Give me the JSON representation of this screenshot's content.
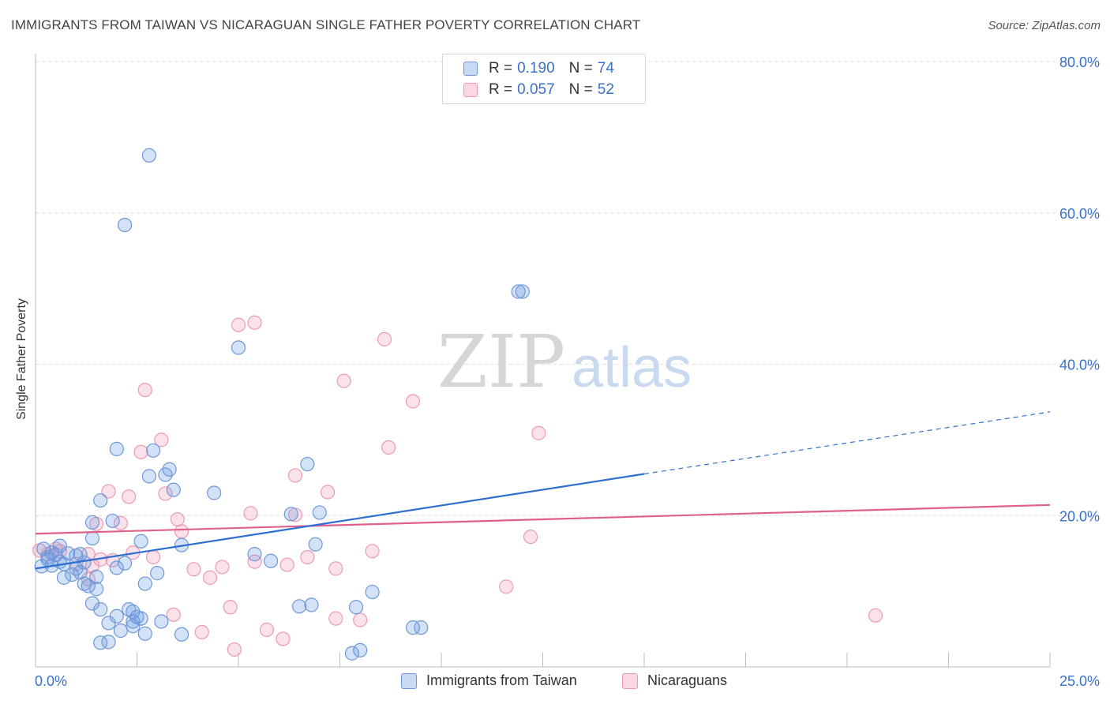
{
  "header": {
    "title": "IMMIGRANTS FROM TAIWAN VS NICARAGUAN SINGLE FATHER POVERTY CORRELATION CHART",
    "source": "Source: ZipAtlas.com"
  },
  "watermark": {
    "zip": "ZIP",
    "atlas": "atlas"
  },
  "legend_top": {
    "r_label": "R =",
    "n_label": "N =",
    "rows": [
      {
        "r": "0.190",
        "n": "74"
      },
      {
        "r": "0.057",
        "n": "52"
      }
    ]
  },
  "legend_bottom": [
    "Immigrants from Taiwan",
    "Nicaraguans"
  ],
  "colors": {
    "blue_fill": "rgba(100,150,225,0.28)",
    "blue_stroke": "#6f98d8",
    "blue_line": "#2f6fd0",
    "pink_fill": "rgba(240,140,170,0.25)",
    "pink_stroke": "#ec9ab4",
    "pink_line": "#e0608c",
    "axis_text": "#3a70c8",
    "grid": "#dddddd"
  },
  "chart_data": {
    "type": "scatter",
    "title": "IMMIGRANTS FROM TAIWAN VS NICARAGUAN SINGLE FATHER POVERTY CORRELATION CHART",
    "xlabel": "",
    "ylabel": "Single Father Poverty",
    "xlim": [
      0,
      25
    ],
    "ylim": [
      0,
      80
    ],
    "x_tick_labels": [
      "0.0%",
      "25.0%"
    ],
    "y_ticks": [
      20,
      40,
      60,
      80
    ],
    "y_tick_labels": [
      "20.0%",
      "40.0%",
      "60.0%",
      "80.0%"
    ],
    "grid": true,
    "legend_position": "top-center",
    "series": [
      {
        "name": "Immigrants from Taiwan",
        "r": 0.19,
        "n": 74,
        "trend": {
          "x0": 0,
          "y0": 13.0,
          "x1": 15.0,
          "y1": 25.5,
          "dash_to_x": 25,
          "dash_to_y": 33.7
        },
        "points": [
          [
            2.8,
            67.6
          ],
          [
            2.2,
            58.4
          ],
          [
            12.0,
            49.6
          ],
          [
            11.9,
            49.6
          ],
          [
            5.0,
            42.2
          ],
          [
            2.0,
            28.8
          ],
          [
            2.9,
            28.6
          ],
          [
            6.7,
            26.8
          ],
          [
            3.3,
            26.1
          ],
          [
            3.2,
            25.4
          ],
          [
            2.8,
            25.2
          ],
          [
            3.4,
            23.4
          ],
          [
            4.4,
            23.0
          ],
          [
            1.6,
            22.0
          ],
          [
            7.0,
            20.4
          ],
          [
            6.3,
            20.2
          ],
          [
            1.9,
            19.3
          ],
          [
            1.4,
            19.1
          ],
          [
            1.4,
            17.0
          ],
          [
            2.6,
            16.6
          ],
          [
            3.6,
            16.1
          ],
          [
            6.9,
            16.2
          ],
          [
            0.6,
            16.0
          ],
          [
            0.2,
            15.6
          ],
          [
            0.4,
            15.1
          ],
          [
            0.8,
            15.0
          ],
          [
            0.5,
            14.8
          ],
          [
            1.1,
            14.9
          ],
          [
            0.3,
            14.5
          ],
          [
            5.4,
            14.9
          ],
          [
            1.2,
            13.8
          ],
          [
            2.2,
            13.7
          ],
          [
            0.7,
            13.6
          ],
          [
            0.4,
            13.4
          ],
          [
            1.0,
            13.0
          ],
          [
            5.8,
            14.0
          ],
          [
            1.1,
            12.5
          ],
          [
            3.0,
            12.4
          ],
          [
            0.9,
            12.2
          ],
          [
            1.5,
            11.9
          ],
          [
            0.7,
            11.8
          ],
          [
            2.7,
            11.0
          ],
          [
            1.2,
            11.0
          ],
          [
            1.3,
            10.7
          ],
          [
            1.5,
            10.3
          ],
          [
            8.3,
            9.9
          ],
          [
            1.4,
            8.4
          ],
          [
            6.5,
            8.0
          ],
          [
            6.8,
            8.2
          ],
          [
            7.9,
            7.9
          ],
          [
            1.6,
            7.6
          ],
          [
            2.3,
            7.6
          ],
          [
            2.4,
            7.3
          ],
          [
            2.0,
            6.7
          ],
          [
            2.5,
            6.6
          ],
          [
            2.6,
            6.4
          ],
          [
            2.4,
            6.0
          ],
          [
            3.1,
            6.0
          ],
          [
            1.8,
            5.8
          ],
          [
            2.4,
            5.4
          ],
          [
            9.5,
            5.2
          ],
          [
            9.3,
            5.2
          ],
          [
            2.1,
            4.8
          ],
          [
            2.7,
            4.4
          ],
          [
            3.6,
            4.3
          ],
          [
            1.6,
            3.2
          ],
          [
            1.8,
            3.3
          ],
          [
            8.0,
            2.2
          ],
          [
            7.8,
            1.8
          ],
          [
            0.3,
            14.2
          ],
          [
            0.6,
            13.9
          ],
          [
            1.0,
            14.7
          ],
          [
            2.0,
            13.1
          ],
          [
            0.15,
            13.3
          ]
        ]
      },
      {
        "name": "Nicaraguans",
        "r": 0.057,
        "n": 52,
        "trend": {
          "x0": 0,
          "y0": 17.6,
          "x1": 25,
          "y1": 21.4
        },
        "points": [
          [
            5.4,
            45.5
          ],
          [
            5.0,
            45.2
          ],
          [
            8.6,
            43.3
          ],
          [
            7.6,
            37.8
          ],
          [
            2.7,
            36.6
          ],
          [
            9.3,
            35.1
          ],
          [
            12.4,
            30.9
          ],
          [
            3.1,
            30.0
          ],
          [
            2.6,
            28.4
          ],
          [
            8.7,
            29.0
          ],
          [
            6.4,
            25.3
          ],
          [
            1.8,
            23.2
          ],
          [
            3.2,
            22.9
          ],
          [
            7.2,
            23.1
          ],
          [
            2.3,
            22.5
          ],
          [
            5.3,
            20.3
          ],
          [
            6.4,
            20.1
          ],
          [
            3.5,
            19.5
          ],
          [
            2.1,
            19.0
          ],
          [
            1.5,
            18.9
          ],
          [
            3.6,
            17.9
          ],
          [
            12.2,
            17.2
          ],
          [
            0.5,
            15.6
          ],
          [
            0.6,
            15.3
          ],
          [
            2.4,
            15.1
          ],
          [
            8.3,
            15.3
          ],
          [
            1.3,
            14.9
          ],
          [
            1.6,
            14.2
          ],
          [
            2.9,
            14.5
          ],
          [
            6.7,
            14.5
          ],
          [
            1.9,
            14.1
          ],
          [
            5.4,
            13.9
          ],
          [
            6.2,
            13.5
          ],
          [
            1.0,
            13.6
          ],
          [
            1.4,
            13.4
          ],
          [
            4.6,
            13.2
          ],
          [
            3.9,
            12.9
          ],
          [
            7.4,
            13.0
          ],
          [
            4.3,
            11.8
          ],
          [
            1.3,
            11.6
          ],
          [
            11.6,
            10.6
          ],
          [
            4.8,
            7.9
          ],
          [
            3.4,
            6.9
          ],
          [
            7.4,
            6.4
          ],
          [
            8.0,
            6.2
          ],
          [
            20.7,
            6.8
          ],
          [
            5.7,
            4.9
          ],
          [
            4.1,
            4.6
          ],
          [
            6.1,
            3.7
          ],
          [
            4.9,
            2.3
          ],
          [
            0.1,
            15.4
          ],
          [
            0.3,
            14.9
          ]
        ]
      }
    ]
  }
}
